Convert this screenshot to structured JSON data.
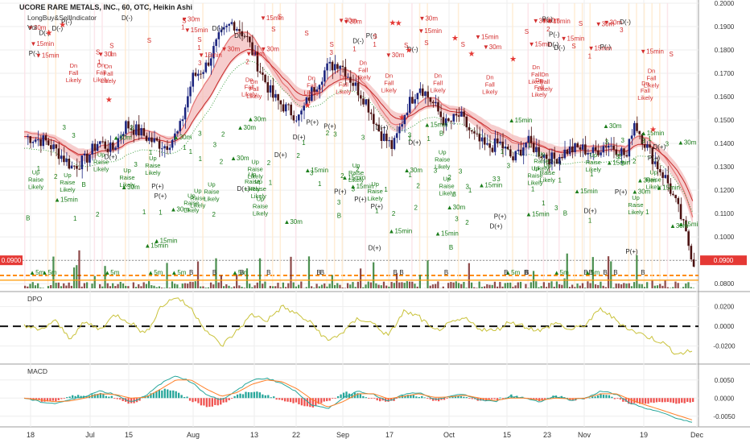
{
  "header": {
    "title": "UCORE RARE METALS, INC., 60, OTC, Heikin Ashi",
    "indicator": "LongBuy&SellIndicator",
    "vol_label": "Vol"
  },
  "colors": {
    "up": "#1a237e",
    "down": "#4a1010",
    "ema_fast": "#e57373",
    "ema_slow": "#c62828",
    "band_fill": "#f2b8b8",
    "sig_sell": "#d32f2f",
    "sig_buy": "#1b7d1b",
    "dpo": "#c9c23a",
    "macd": "#26a69a",
    "signal": "#ff7f27",
    "hist_pos": "#26a69a",
    "hist_neg": "#ef5350",
    "last_price_bg": "#e53935",
    "dashed_orange": "#ff8c00"
  },
  "chart_data": [
    {
      "type": "candlestick",
      "name": "Price",
      "x_labels": [
        "18",
        "Jul",
        "15",
        "Aug",
        "13",
        "22",
        "Sep",
        "17",
        "Oct",
        "15",
        "23",
        "Nov",
        "19",
        "Dec"
      ],
      "x_label_positions_index": [
        0,
        1,
        2,
        3,
        4,
        5,
        6,
        7,
        8,
        9,
        10,
        11,
        12,
        13
      ],
      "ylim": [
        0.078,
        0.2
      ],
      "y_ticks": [
        "0.2000",
        "0.1900",
        "0.1800",
        "0.1700",
        "0.1600",
        "0.1500",
        "0.1400",
        "0.1300",
        "0.1200",
        "0.1100",
        "0.1000",
        "0.0900",
        "0.0800"
      ],
      "last_price": "0.0900",
      "close_path": [
        [
          0,
          0.143
        ],
        [
          0.03,
          0.141
        ],
        [
          0.05,
          0.136
        ],
        [
          0.07,
          0.13
        ],
        [
          0.09,
          0.133
        ],
        [
          0.11,
          0.141
        ],
        [
          0.13,
          0.137
        ],
        [
          0.15,
          0.148
        ],
        [
          0.17,
          0.145
        ],
        [
          0.19,
          0.141
        ],
        [
          0.21,
          0.139
        ],
        [
          0.23,
          0.145
        ],
        [
          0.25,
          0.168
        ],
        [
          0.27,
          0.173
        ],
        [
          0.29,
          0.185
        ],
        [
          0.31,
          0.192
        ],
        [
          0.33,
          0.186
        ],
        [
          0.35,
          0.172
        ],
        [
          0.37,
          0.16
        ],
        [
          0.39,
          0.155
        ],
        [
          0.41,
          0.151
        ],
        [
          0.43,
          0.163
        ],
        [
          0.45,
          0.172
        ],
        [
          0.47,
          0.175
        ],
        [
          0.49,
          0.166
        ],
        [
          0.51,
          0.158
        ],
        [
          0.53,
          0.145
        ],
        [
          0.55,
          0.138
        ],
        [
          0.57,
          0.155
        ],
        [
          0.59,
          0.165
        ],
        [
          0.61,
          0.157
        ],
        [
          0.63,
          0.148
        ],
        [
          0.65,
          0.152
        ],
        [
          0.67,
          0.143
        ],
        [
          0.69,
          0.138
        ],
        [
          0.71,
          0.14
        ],
        [
          0.73,
          0.133
        ],
        [
          0.75,
          0.141
        ],
        [
          0.77,
          0.136
        ],
        [
          0.79,
          0.133
        ],
        [
          0.81,
          0.137
        ],
        [
          0.83,
          0.138
        ],
        [
          0.85,
          0.136
        ],
        [
          0.87,
          0.14
        ],
        [
          0.89,
          0.137
        ],
        [
          0.9,
          0.134
        ],
        [
          0.91,
          0.15
        ],
        [
          0.92,
          0.144
        ],
        [
          0.94,
          0.133
        ],
        [
          0.96,
          0.124
        ],
        [
          0.98,
          0.109
        ],
        [
          1.0,
          0.089
        ]
      ],
      "sell_labels": [
        "Dn",
        "Fall",
        "Likely"
      ],
      "buy_labels": [
        "Up",
        "Raise",
        "Likely"
      ],
      "sell_markers": [
        "S",
        "▼15min",
        "▼30m",
        "P(-)",
        "D(-)"
      ],
      "buy_markers": [
        "B",
        "▲15min",
        "▲30m",
        "P(+)",
        "D(+)"
      ],
      "counter_markers": [
        "1",
        "2",
        "3"
      ]
    },
    {
      "type": "line",
      "name": "DPO",
      "title": "DPO",
      "ylim": [
        -0.035,
        0.032
      ],
      "y_ticks": [
        "0.0200",
        "0.0000",
        "-0.0200"
      ],
      "values": [
        0.002,
        -0.005,
        0.006,
        -0.012,
        0.004,
        -0.003,
        0.012,
        0.004,
        -0.008,
        0.02,
        0.03,
        0.018,
        -0.004,
        -0.02,
        -0.005,
        0.012,
        0.006,
        0.02,
        0.012,
        0.002,
        -0.015,
        -0.006,
        0.008,
        0.003,
        -0.01,
        0.015,
        0.01,
        -0.005,
        0.002,
        0.008,
        -0.002,
        -0.005,
        0.005,
        0.0,
        -0.005,
        0.004,
        -0.004,
        0.002,
        0.018,
        0.006,
        -0.004,
        -0.01,
        -0.016,
        -0.028,
        -0.025
      ],
      "zero_line": 0
    },
    {
      "type": "line",
      "name": "MACD",
      "title": "MACD",
      "ylim": [
        -0.0075,
        0.0085
      ],
      "y_ticks": [
        "0.0050",
        "0.0000",
        "-0.0050"
      ],
      "macd": [
        0.0,
        -0.001,
        -0.0015,
        -0.0005,
        0.0005,
        0.002,
        0.001,
        -0.001,
        0.0005,
        0.004,
        0.0062,
        0.0045,
        0.001,
        -0.0005,
        0.002,
        0.005,
        0.0055,
        0.004,
        0.0015,
        -0.002,
        -0.003,
        0.0,
        0.002,
        0.001,
        -0.001,
        0.001,
        0.0015,
        -0.0005,
        0.0005,
        0.001,
        -0.0005,
        -0.001,
        0.0005,
        0.0,
        -0.001,
        0.0005,
        -0.0005,
        0.0,
        0.002,
        0.001,
        -0.0015,
        -0.003,
        -0.004,
        -0.0055,
        -0.0068
      ],
      "signal": [
        0.0,
        -0.0005,
        -0.001,
        -0.0008,
        0.0,
        0.0012,
        0.001,
        0.0,
        0.0002,
        0.0025,
        0.005,
        0.005,
        0.0025,
        0.0005,
        0.0015,
        0.0038,
        0.005,
        0.0045,
        0.0025,
        -0.0005,
        -0.0025,
        -0.001,
        0.0012,
        0.0012,
        -0.0002,
        0.0005,
        0.0012,
        0.0002,
        0.0003,
        0.0008,
        0.0,
        -0.0007,
        0.0,
        0.0,
        -0.0006,
        0.0,
        -0.0002,
        0.0,
        0.0012,
        0.0012,
        -0.0005,
        -0.002,
        -0.0033,
        -0.0047,
        -0.006
      ]
    }
  ]
}
